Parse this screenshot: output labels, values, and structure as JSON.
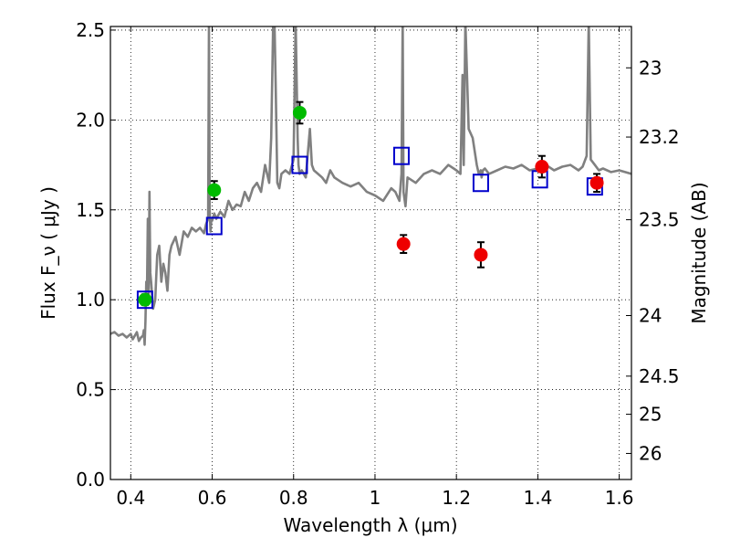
{
  "chart_data": {
    "type": "scatter",
    "xlabel": "Wavelength  λ (μm)",
    "ylabel": "Flux  F_ν  ( μJy )",
    "y2label": "Magnitude (AB)",
    "xlim": [
      0.35,
      1.63
    ],
    "ylim": [
      0.0,
      2.52
    ],
    "x_ticks": [
      0.4,
      0.6,
      0.8,
      1.0,
      1.2,
      1.4,
      1.6
    ],
    "x_tick_labels": [
      "0.4",
      "0.6",
      "0.8",
      "1",
      "1.2",
      "1.4",
      "1.6"
    ],
    "y_ticks": [
      0.0,
      0.5,
      1.0,
      1.5,
      2.0,
      2.5
    ],
    "y_tick_labels": [
      "0.0",
      "0.5",
      "1.0",
      "1.5",
      "2.0",
      "2.5"
    ],
    "y2_ticks": [
      {
        "label": "23",
        "flux": 2.29
      },
      {
        "label": "23.2",
        "flux": 1.905
      },
      {
        "label": "23.5",
        "flux": 1.445
      },
      {
        "label": "24",
        "flux": 0.912
      },
      {
        "label": "24.5",
        "flux": 0.575
      },
      {
        "label": "25",
        "flux": 0.363
      },
      {
        "label": "26",
        "flux": 0.145
      }
    ],
    "grid": true,
    "series": [
      {
        "kind": "spectrum",
        "color": "#808080",
        "x": [
          0.35,
          0.36,
          0.37,
          0.38,
          0.39,
          0.4,
          0.405,
          0.41,
          0.415,
          0.42,
          0.425,
          0.43,
          0.432,
          0.434,
          0.436,
          0.438,
          0.44,
          0.442,
          0.444,
          0.446,
          0.448,
          0.45,
          0.455,
          0.46,
          0.465,
          0.47,
          0.475,
          0.48,
          0.485,
          0.49,
          0.495,
          0.5,
          0.51,
          0.52,
          0.53,
          0.54,
          0.55,
          0.56,
          0.57,
          0.58,
          0.585,
          0.59,
          0.592,
          0.594,
          0.596,
          0.598,
          0.6,
          0.605,
          0.61,
          0.62,
          0.63,
          0.64,
          0.65,
          0.66,
          0.67,
          0.68,
          0.69,
          0.7,
          0.71,
          0.72,
          0.73,
          0.74,
          0.745,
          0.75,
          0.753,
          0.756,
          0.76,
          0.765,
          0.77,
          0.78,
          0.79,
          0.8,
          0.805,
          0.81,
          0.812,
          0.815,
          0.82,
          0.83,
          0.84,
          0.845,
          0.85,
          0.86,
          0.87,
          0.88,
          0.89,
          0.9,
          0.92,
          0.94,
          0.96,
          0.98,
          1.0,
          1.02,
          1.04,
          1.05,
          1.06,
          1.065,
          1.068,
          1.07,
          1.075,
          1.08,
          1.1,
          1.12,
          1.14,
          1.16,
          1.18,
          1.2,
          1.21,
          1.215,
          1.218,
          1.222,
          1.23,
          1.24,
          1.25,
          1.255,
          1.26,
          1.262,
          1.265,
          1.27,
          1.28,
          1.3,
          1.32,
          1.34,
          1.36,
          1.38,
          1.4,
          1.42,
          1.44,
          1.46,
          1.48,
          1.5,
          1.51,
          1.52,
          1.525,
          1.53,
          1.54,
          1.55,
          1.56,
          1.58,
          1.6,
          1.63
        ],
        "y": [
          0.81,
          0.82,
          0.8,
          0.81,
          0.79,
          0.81,
          0.78,
          0.8,
          0.82,
          0.77,
          0.79,
          0.8,
          0.83,
          0.75,
          0.88,
          1.1,
          1.05,
          1.45,
          1.0,
          1.6,
          1.15,
          1.1,
          0.95,
          1.0,
          1.25,
          1.3,
          1.1,
          1.2,
          1.15,
          1.05,
          1.25,
          1.3,
          1.35,
          1.25,
          1.38,
          1.35,
          1.4,
          1.38,
          1.4,
          1.37,
          1.42,
          1.45,
          2.55,
          1.5,
          1.38,
          1.45,
          1.44,
          1.48,
          1.45,
          1.49,
          1.46,
          1.55,
          1.5,
          1.53,
          1.52,
          1.6,
          1.55,
          1.62,
          1.65,
          1.6,
          1.75,
          1.65,
          1.9,
          2.55,
          2.55,
          2.2,
          1.65,
          1.62,
          1.7,
          1.72,
          1.7,
          1.78,
          2.55,
          1.9,
          1.75,
          1.7,
          1.72,
          1.68,
          1.95,
          1.75,
          1.72,
          1.7,
          1.68,
          1.65,
          1.72,
          1.68,
          1.65,
          1.63,
          1.65,
          1.6,
          1.58,
          1.55,
          1.62,
          1.6,
          1.55,
          1.7,
          2.55,
          1.6,
          1.52,
          1.68,
          1.65,
          1.7,
          1.72,
          1.7,
          1.75,
          1.72,
          1.7,
          2.25,
          1.75,
          2.55,
          1.95,
          1.9,
          1.75,
          1.7,
          1.72,
          1.68,
          1.72,
          1.73,
          1.7,
          1.72,
          1.74,
          1.73,
          1.75,
          1.72,
          1.73,
          1.75,
          1.72,
          1.74,
          1.75,
          1.72,
          1.74,
          1.8,
          2.55,
          1.78,
          1.75,
          1.72,
          1.73,
          1.71,
          1.72,
          1.7
        ]
      },
      {
        "kind": "model-photometry",
        "marker": "square",
        "color": "#0000cc",
        "x": [
          0.435,
          0.605,
          0.815,
          1.065,
          1.26,
          1.405,
          1.54
        ],
        "y": [
          1.0,
          1.41,
          1.75,
          1.8,
          1.65,
          1.67,
          1.63
        ]
      },
      {
        "kind": "observed-optical",
        "marker": "circle",
        "color": "#00bb00",
        "x": [
          0.435,
          0.605,
          0.815
        ],
        "y": [
          1.0,
          1.61,
          2.04
        ],
        "yerr": [
          0.03,
          0.05,
          0.06
        ]
      },
      {
        "kind": "observed-infrared",
        "marker": "circle",
        "color": "#ee0000",
        "x": [
          1.07,
          1.26,
          1.41,
          1.545
        ],
        "y": [
          1.31,
          1.25,
          1.74,
          1.65
        ],
        "yerr": [
          0.05,
          0.07,
          0.06,
          0.05
        ]
      }
    ]
  }
}
